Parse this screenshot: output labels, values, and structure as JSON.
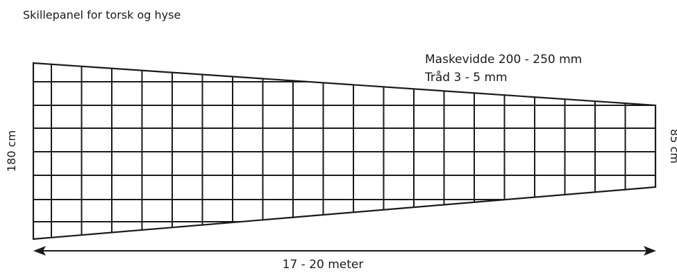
{
  "title": "Skillepanel for torsk og hyse",
  "spec": {
    "mesh": "Maskevidde 200 - 250 mm",
    "thread": "Tråd 3 - 5 mm"
  },
  "dimensions": {
    "left_height": "180 cm",
    "right_height": "85 cm",
    "length": "17 - 20 meter"
  },
  "panel": {
    "columns": 21,
    "rows": 7,
    "color": "#1a1a1a"
  }
}
